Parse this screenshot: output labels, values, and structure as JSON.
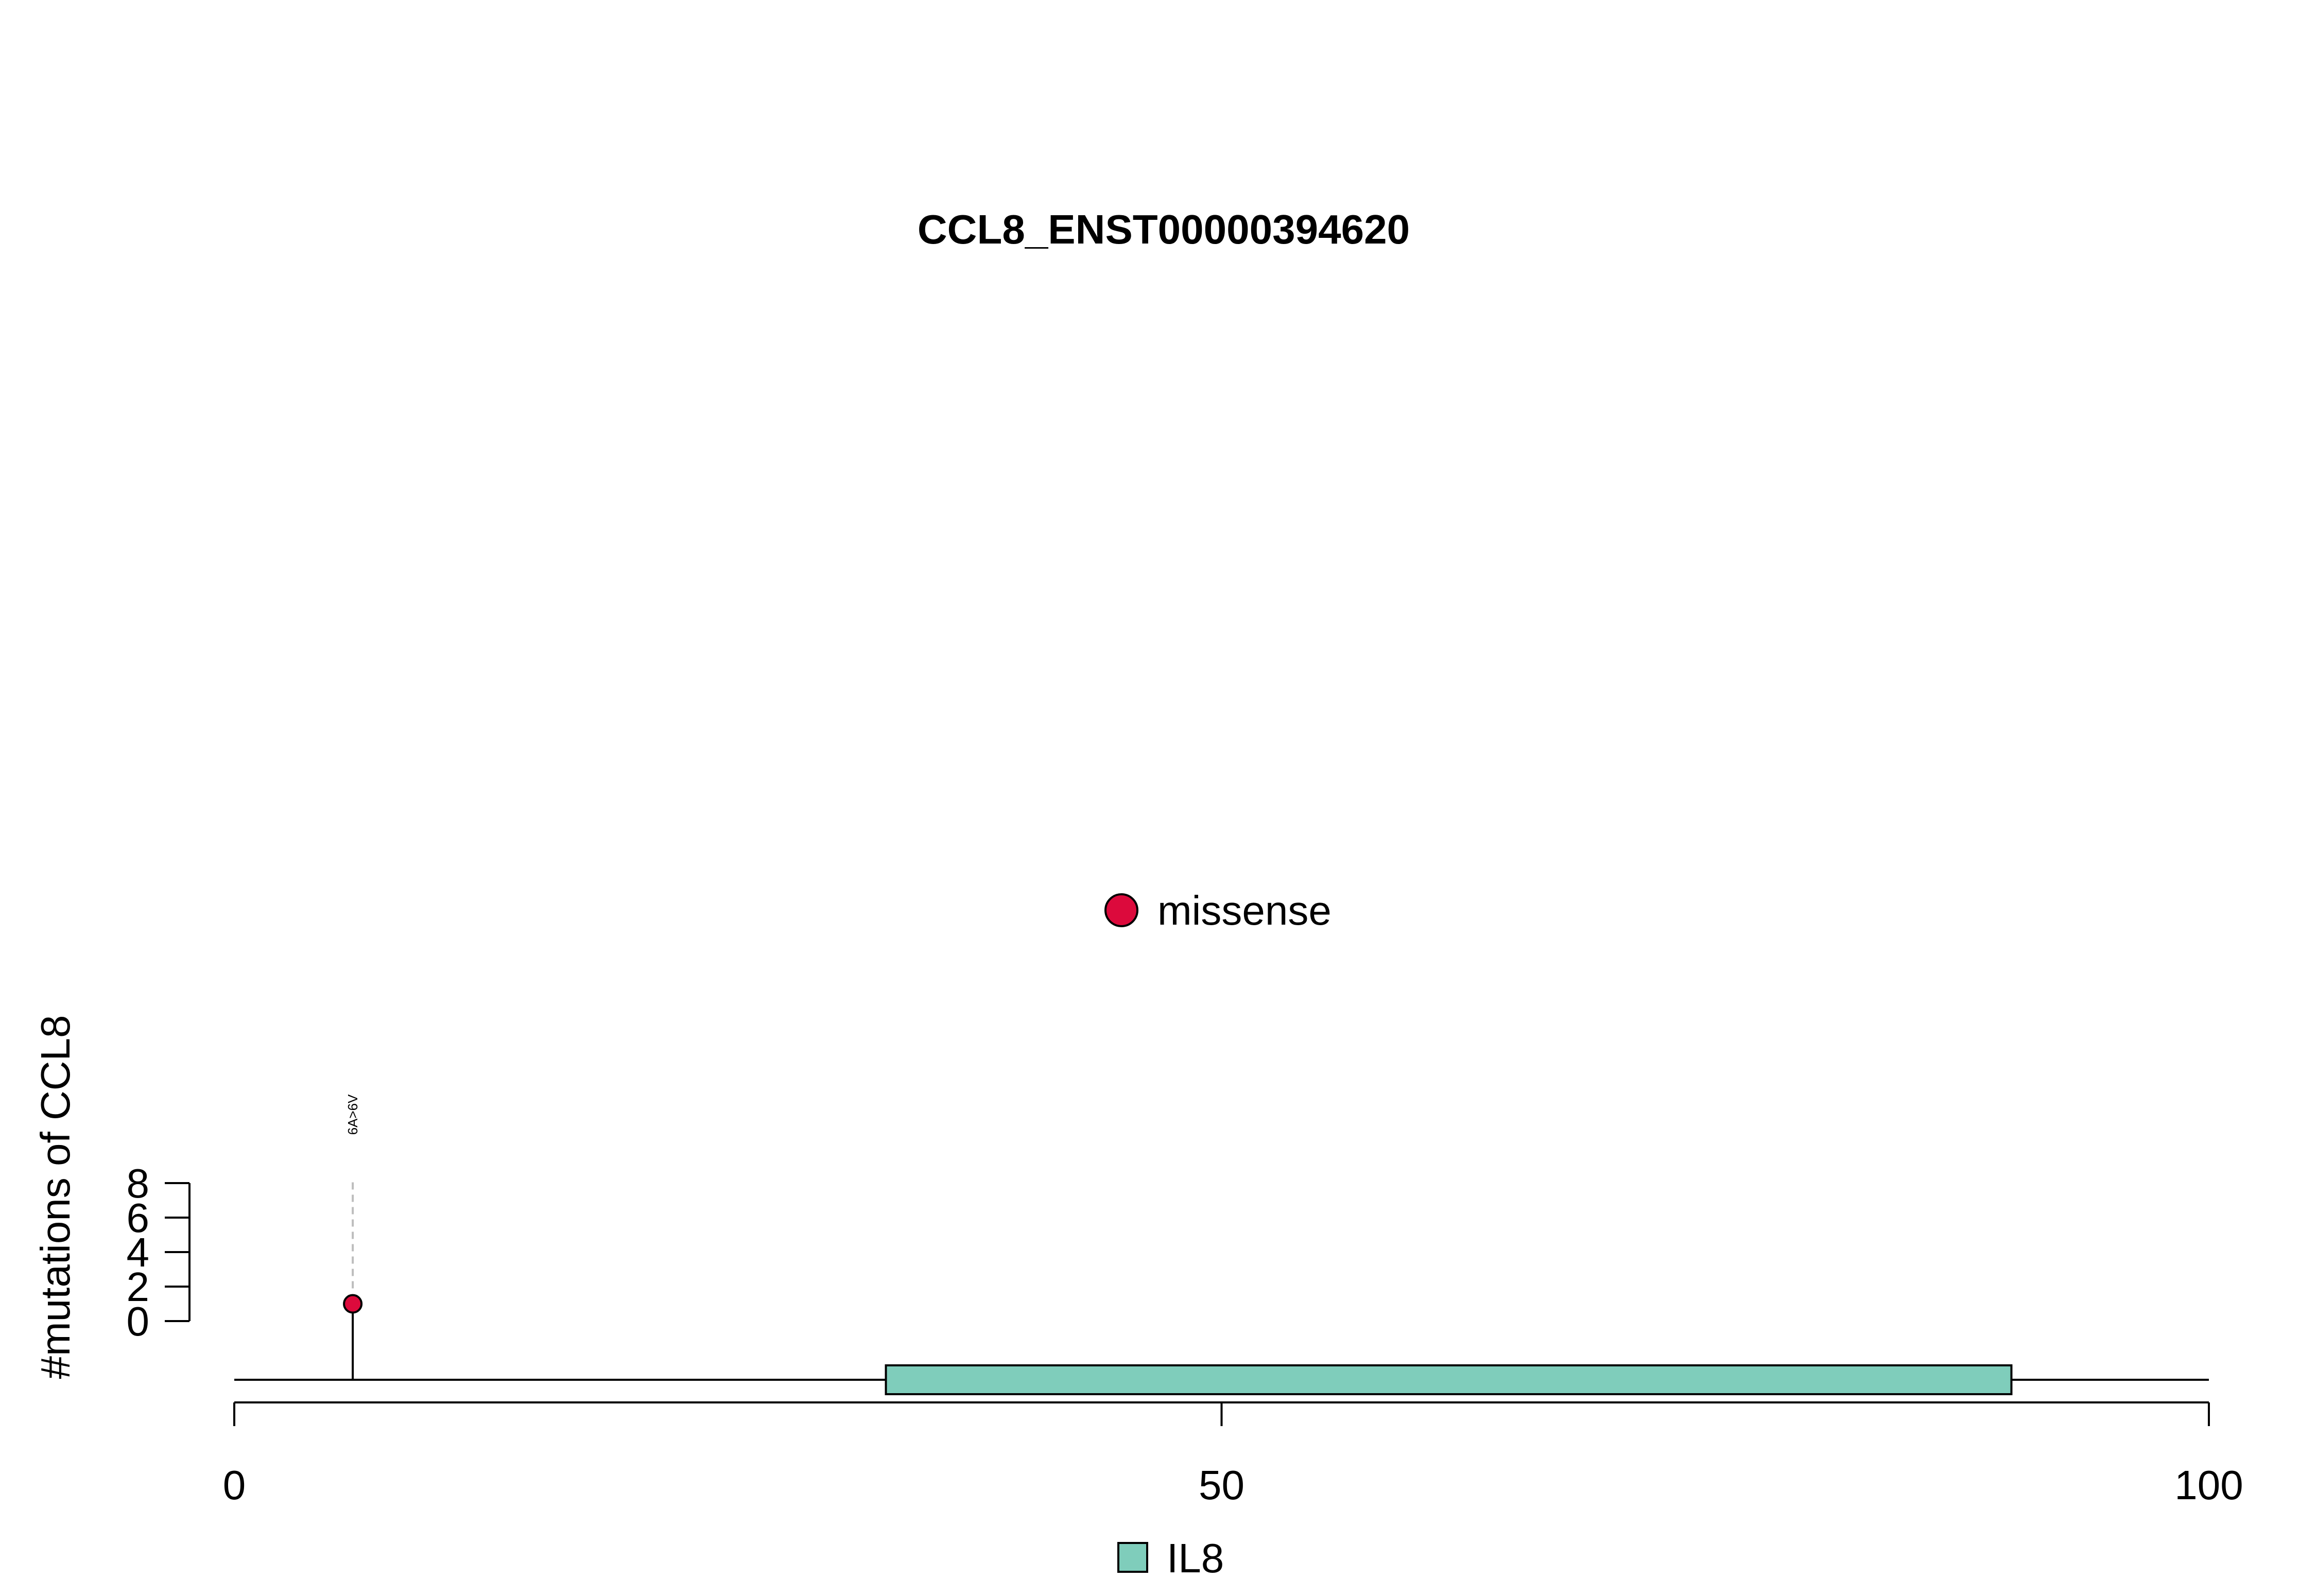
{
  "chart_data": {
    "type": "lollipop",
    "title": "CCL8_ENST00000394620",
    "ylabel": "#mutations of CCL8",
    "xlim": [
      0,
      100
    ],
    "x_ticks": [
      0,
      50,
      100
    ],
    "y_ticks": [
      0,
      2,
      4,
      6,
      8
    ],
    "ylim": [
      0,
      8
    ],
    "protein_length": 100,
    "domains": [
      {
        "name": "IL8",
        "start": 33,
        "end": 90,
        "color": "#7FCDBB"
      }
    ],
    "mutations": [
      {
        "position": 6,
        "label": "6A>6V",
        "count": 1,
        "type": "missense",
        "color": "#DC0A3C"
      }
    ],
    "mutation_legend": [
      {
        "label": "missense",
        "color": "#DC0A3C"
      }
    ],
    "domain_legend": [
      {
        "label": "IL8",
        "color": "#7FCDBB"
      }
    ]
  }
}
